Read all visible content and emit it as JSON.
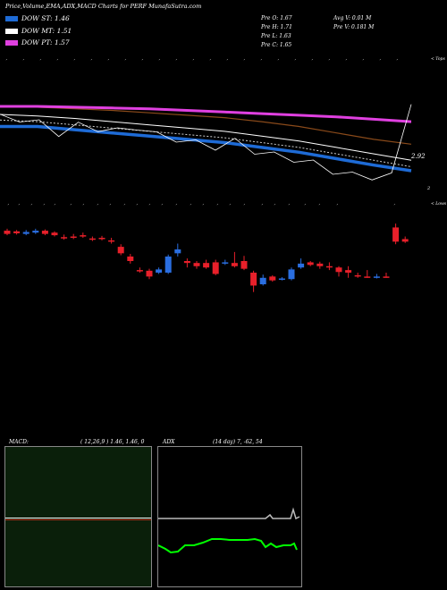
{
  "header": {
    "title": "Price,Volume,EMA,ADX,MACD Charts for PERF MunafaSutra.com"
  },
  "legend": [
    {
      "label": "DOW ST: 1.46",
      "color": "#1e6bd6"
    },
    {
      "label": "DOW MT: 1.51",
      "color": "#ffffff"
    },
    {
      "label": "DOW PT: 1.57",
      "color": "#e040e0"
    }
  ],
  "stats": {
    "prev_open": "Pre  O: 1.67",
    "prev_high": "Pre  H: 1.71",
    "prev_low": "Pre  L: 1.63",
    "prev_close": "Pre  C: 1.65",
    "avg_volume": "Avg V: 0.01 M",
    "prev_volume": "Pre  V: 0.181 M"
  },
  "panel_labels": {
    "top": "< Tops",
    "lows": "< Lows"
  },
  "macd": {
    "label": "MACD:",
    "values": "( 12,26,9 ) 1.46,  1.46,  0"
  },
  "adx": {
    "label": "ADX",
    "values": "(14  day) 7,  -62,  54"
  },
  "chart_data": [
    {
      "type": "line",
      "title": "Price,Volume,EMA,ADX,MACD Charts for PERF MunafaSutra.com",
      "series": [
        {
          "name": "DOW PT",
          "color": "#e040e0",
          "values": [
            2.85,
            2.85,
            2.84,
            2.83,
            2.82,
            2.8,
            2.78,
            2.76,
            2.74,
            2.72,
            2.69,
            2.66
          ]
        },
        {
          "name": "DOW ST",
          "color": "#1e6bd6",
          "values": [
            2.6,
            2.6,
            2.56,
            2.52,
            2.48,
            2.44,
            2.4,
            2.34,
            2.28,
            2.2,
            2.12,
            2.05
          ]
        }
      ],
      "price_close": [
        2.72,
        2.7,
        2.65,
        2.52,
        2.62,
        2.58,
        2.55,
        2.6,
        2.5,
        2.45,
        2.4,
        2.35,
        2.42,
        2.3,
        2.25,
        2.2,
        2.15,
        2.05,
        2.0,
        1.98,
        1.99,
        2.92
      ],
      "last_price_label": "2.92",
      "axis_label": "2"
    },
    {
      "type": "bar",
      "subtitle": "candles",
      "ylim": [
        1.4,
        3.2
      ],
      "candles": [
        {
          "o": 2.95,
          "c": 2.9,
          "h": 2.98,
          "l": 2.88,
          "col": "red"
        },
        {
          "o": 2.94,
          "c": 2.91,
          "h": 2.96,
          "l": 2.89,
          "col": "red"
        },
        {
          "o": 2.9,
          "c": 2.93,
          "h": 2.96,
          "l": 2.88,
          "col": "blue"
        },
        {
          "o": 2.92,
          "c": 2.95,
          "h": 2.98,
          "l": 2.9,
          "col": "blue"
        },
        {
          "o": 2.95,
          "c": 2.9,
          "h": 2.97,
          "l": 2.88,
          "col": "red"
        },
        {
          "o": 2.92,
          "c": 2.88,
          "h": 2.94,
          "l": 2.86,
          "col": "red"
        },
        {
          "o": 2.85,
          "c": 2.83,
          "h": 2.89,
          "l": 2.81,
          "col": "red"
        },
        {
          "o": 2.86,
          "c": 2.86,
          "h": 2.9,
          "l": 2.82,
          "col": "red"
        },
        {
          "o": 2.88,
          "c": 2.86,
          "h": 2.92,
          "l": 2.84,
          "col": "red"
        },
        {
          "o": 2.83,
          "c": 2.81,
          "h": 2.86,
          "l": 2.79,
          "col": "red"
        },
        {
          "o": 2.84,
          "c": 2.82,
          "h": 2.87,
          "l": 2.8,
          "col": "red"
        },
        {
          "o": 2.8,
          "c": 2.78,
          "h": 2.84,
          "l": 2.75,
          "col": "red"
        },
        {
          "o": 2.7,
          "c": 2.6,
          "h": 2.74,
          "l": 2.57,
          "col": "red"
        },
        {
          "o": 2.55,
          "c": 2.48,
          "h": 2.59,
          "l": 2.44,
          "col": "red"
        },
        {
          "o": 2.34,
          "c": 2.32,
          "h": 2.38,
          "l": 2.3,
          "col": "red"
        },
        {
          "o": 2.33,
          "c": 2.24,
          "h": 2.36,
          "l": 2.2,
          "col": "red"
        },
        {
          "o": 2.3,
          "c": 2.35,
          "h": 2.38,
          "l": 2.28,
          "col": "blue"
        },
        {
          "o": 2.3,
          "c": 2.55,
          "h": 2.58,
          "l": 2.28,
          "col": "blue"
        },
        {
          "o": 2.6,
          "c": 2.66,
          "h": 2.75,
          "l": 2.55,
          "col": "blue"
        },
        {
          "o": 2.48,
          "c": 2.45,
          "h": 2.52,
          "l": 2.38,
          "col": "red"
        },
        {
          "o": 2.45,
          "c": 2.4,
          "h": 2.48,
          "l": 2.36,
          "col": "red"
        },
        {
          "o": 2.45,
          "c": 2.38,
          "h": 2.5,
          "l": 2.36,
          "col": "red"
        },
        {
          "o": 2.46,
          "c": 2.28,
          "h": 2.5,
          "l": 2.26,
          "col": "red"
        },
        {
          "o": 2.44,
          "c": 2.46,
          "h": 2.5,
          "l": 2.42,
          "col": "blue"
        },
        {
          "o": 2.45,
          "c": 2.4,
          "h": 2.62,
          "l": 2.38,
          "col": "red"
        },
        {
          "o": 2.48,
          "c": 2.36,
          "h": 2.56,
          "l": 2.34,
          "col": "red"
        },
        {
          "o": 2.3,
          "c": 2.1,
          "h": 2.33,
          "l": 2.0,
          "col": "red"
        },
        {
          "o": 2.12,
          "c": 2.22,
          "h": 2.27,
          "l": 2.1,
          "col": "blue"
        },
        {
          "o": 2.24,
          "c": 2.18,
          "h": 2.26,
          "l": 2.16,
          "col": "red"
        },
        {
          "o": 2.2,
          "c": 2.21,
          "h": 2.23,
          "l": 2.18,
          "col": "blue"
        },
        {
          "o": 2.2,
          "c": 2.35,
          "h": 2.38,
          "l": 2.18,
          "col": "blue"
        },
        {
          "o": 2.38,
          "c": 2.44,
          "h": 2.52,
          "l": 2.36,
          "col": "blue"
        },
        {
          "o": 2.46,
          "c": 2.42,
          "h": 2.48,
          "l": 2.4,
          "col": "red"
        },
        {
          "o": 2.44,
          "c": 2.4,
          "h": 2.47,
          "l": 2.36,
          "col": "red"
        },
        {
          "o": 2.4,
          "c": 2.38,
          "h": 2.46,
          "l": 2.34,
          "col": "red"
        },
        {
          "o": 2.38,
          "c": 2.31,
          "h": 2.4,
          "l": 2.24,
          "col": "red"
        },
        {
          "o": 2.34,
          "c": 2.3,
          "h": 2.4,
          "l": 2.22,
          "col": "red"
        },
        {
          "o": 2.26,
          "c": 2.25,
          "h": 2.3,
          "l": 2.22,
          "col": "red"
        },
        {
          "o": 2.24,
          "c": 2.24,
          "h": 2.34,
          "l": 2.22,
          "col": "red"
        },
        {
          "o": 2.24,
          "c": 2.22,
          "h": 2.28,
          "l": 2.21,
          "col": "blue"
        },
        {
          "o": 2.24,
          "c": 2.22,
          "h": 2.3,
          "l": 2.22,
          "col": "red"
        },
        {
          "o": 3.0,
          "c": 2.78,
          "h": 3.06,
          "l": 2.74,
          "col": "red"
        },
        {
          "o": 2.82,
          "c": 2.78,
          "h": 2.86,
          "l": 2.76,
          "col": "red"
        }
      ]
    }
  ],
  "colors": {
    "red": "#e8202a",
    "blue": "#2a6ee0",
    "green_panel": "#0a1f0a",
    "adx_green": "#00ff00"
  }
}
